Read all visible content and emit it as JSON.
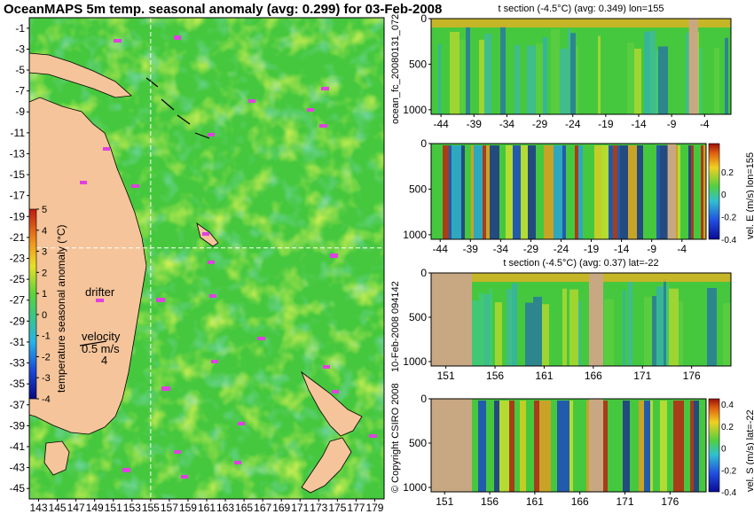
{
  "map": {
    "title": "OceanMAPS 5m temp. seasonal anomaly (avg: 0.299) for 03-Feb-2008",
    "colorbar_label": "temperature seasonal anomaly (°C)",
    "colorbar_ticks": [
      5,
      4,
      3,
      2,
      1,
      0,
      -1,
      -2,
      -3,
      -4
    ],
    "drifter_label": "drifter",
    "velocity_label": "velocity",
    "velocity_scale": "0.5 m/s",
    "velocity_extra": "4",
    "section_marker_lon": 155,
    "section_marker_lat": -22,
    "colors": {
      "land": "#f5c49a",
      "ocean": "#44cc44",
      "drifter": "#e040e0",
      "marker": "#ffffff"
    }
  },
  "chart_data": [
    {
      "type": "heatmap",
      "title": "OceanMAPS 5m temp. seasonal anomaly (avg: 0.299) for 03-Feb-2008",
      "ylabel": "temperature seasonal anomaly (°C)",
      "x_ticks": [
        143,
        145,
        147,
        149,
        151,
        153,
        155,
        157,
        159,
        161,
        163,
        165,
        167,
        169,
        171,
        173,
        175,
        177,
        179
      ],
      "y_ticks": [
        -1,
        -3,
        -5,
        -7,
        -9,
        -11,
        -13,
        -15,
        -17,
        -19,
        -21,
        -23,
        -25,
        -27,
        -29,
        -31,
        -33,
        -35,
        -37,
        -39,
        -41,
        -43,
        -45
      ],
      "xlim": [
        142,
        180
      ],
      "ylim": [
        -46,
        0
      ],
      "colorbar_range": [
        -4,
        5
      ]
    },
    {
      "type": "heatmap",
      "title": "t section (-4.5°C) (avg: 0.349) lon=155",
      "x_ticks": [
        -44,
        -39,
        -34,
        -29,
        -24,
        -19,
        -14,
        -9,
        -4
      ],
      "y_ticks": [
        0,
        500,
        1000
      ],
      "xlim": [
        -45.5,
        0
      ],
      "ylim": [
        1050,
        0
      ]
    },
    {
      "type": "heatmap",
      "title": "",
      "x_ticks": [
        -44,
        -39,
        -34,
        -29,
        -24,
        -19,
        -14,
        -9,
        -4
      ],
      "y_ticks": [
        0,
        500,
        1000
      ],
      "xlim": [
        -45.5,
        0
      ],
      "ylim": [
        1050,
        0
      ],
      "colorbar_label": "vel. E (m/s) lon=155",
      "colorbar_ticks": [
        0.2,
        0,
        -0.2,
        -0.4
      ]
    },
    {
      "type": "heatmap",
      "title": "t section (-4.5°C) (avg: 0.37) lat=-22",
      "x_ticks": [
        151,
        156,
        161,
        166,
        171,
        176
      ],
      "y_ticks": [
        0,
        500,
        1000
      ],
      "xlim": [
        149.5,
        180
      ],
      "ylim": [
        1050,
        0
      ]
    },
    {
      "type": "heatmap",
      "title": "",
      "x_ticks": [
        151,
        156,
        161,
        166,
        171,
        176
      ],
      "y_ticks": [
        0,
        500,
        1000
      ],
      "xlim": [
        149.5,
        180
      ],
      "ylim": [
        1050,
        0
      ],
      "colorbar_label": "vel. S (m/s) lat=-22",
      "colorbar_ticks": [
        0.4,
        0.2,
        0,
        -0.2,
        -0.4
      ]
    }
  ],
  "side_labels": {
    "upper": "ocean_fc_20080131_072",
    "middle": "10-Feb-2008 094142",
    "lower": "© Copyright CSIRO 2008"
  }
}
